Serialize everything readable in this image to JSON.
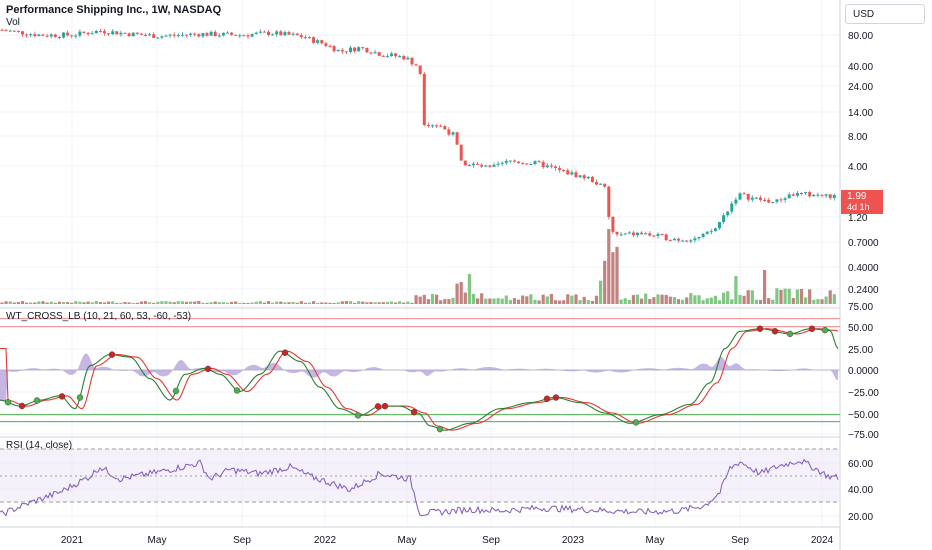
{
  "header": {
    "title": "Performance Shipping Inc., 1W, NASDAQ",
    "volume_label": "Vol",
    "currency": "USD"
  },
  "price_scale": {
    "ticks": [
      "80.00",
      "40.00",
      "24.00",
      "14.00",
      "8.00",
      "4.00",
      "1.20",
      "0.7000",
      "0.4000",
      "0.2400"
    ],
    "last_price": "1.99",
    "countdown": "4d 1h"
  },
  "wt_panel": {
    "label": "WT_CROSS_LB (10, 21, 60, 53, -60, -53)",
    "ticks": [
      "75.00",
      "50.00",
      "25.00",
      "0.0000",
      "−25.00",
      "−50.00",
      "−75.00"
    ]
  },
  "rsi_panel": {
    "label": "RSI (14, close)",
    "ticks": [
      "60.00",
      "40.00",
      "20.00"
    ]
  },
  "time_axis": {
    "labels": [
      "2021",
      "May",
      "Sep",
      "2022",
      "May",
      "Sep",
      "2023",
      "May",
      "Sep",
      "2024"
    ]
  },
  "colors": {
    "up": "#26a69a",
    "down": "#ef5350",
    "vol_up": "#81c784",
    "vol_down": "#c2827f",
    "wt1": "#2e7d32",
    "wt2": "#e53935",
    "rsi": "#7e57c2",
    "hist": "#b39ddb"
  },
  "chart_data": {
    "type": "candlestick",
    "price_samples": [
      {
        "date": "2020-10",
        "close": 90
      },
      {
        "date": "2021-01",
        "close": 82
      },
      {
        "date": "2021-05",
        "close": 80
      },
      {
        "date": "2021-09",
        "close": 85
      },
      {
        "date": "2022-01",
        "close": 60
      },
      {
        "date": "2022-04",
        "close": 45
      },
      {
        "date": "2022-05",
        "close": 10
      },
      {
        "date": "2022-09",
        "close": 5
      },
      {
        "date": "2023-01",
        "close": 2.8
      },
      {
        "date": "2023-02",
        "close": 0.85
      },
      {
        "date": "2023-05",
        "close": 0.78
      },
      {
        "date": "2023-08",
        "close": 1.2
      },
      {
        "date": "2023-09",
        "close": 2.0
      },
      {
        "date": "2023-12",
        "close": 2.2
      },
      {
        "date": "2024-01",
        "close": 1.99
      }
    ],
    "rsi_samples": [
      {
        "date": "2020-10",
        "value": 22
      },
      {
        "date": "2021-03",
        "value": 55
      },
      {
        "date": "2021-09",
        "value": 52
      },
      {
        "date": "2022-04",
        "value": 50
      },
      {
        "date": "2022-05",
        "value": 23
      },
      {
        "date": "2023-03",
        "value": 23
      },
      {
        "date": "2023-08",
        "value": 30
      },
      {
        "date": "2023-09",
        "value": 62
      },
      {
        "date": "2024-01",
        "value": 49
      }
    ]
  }
}
